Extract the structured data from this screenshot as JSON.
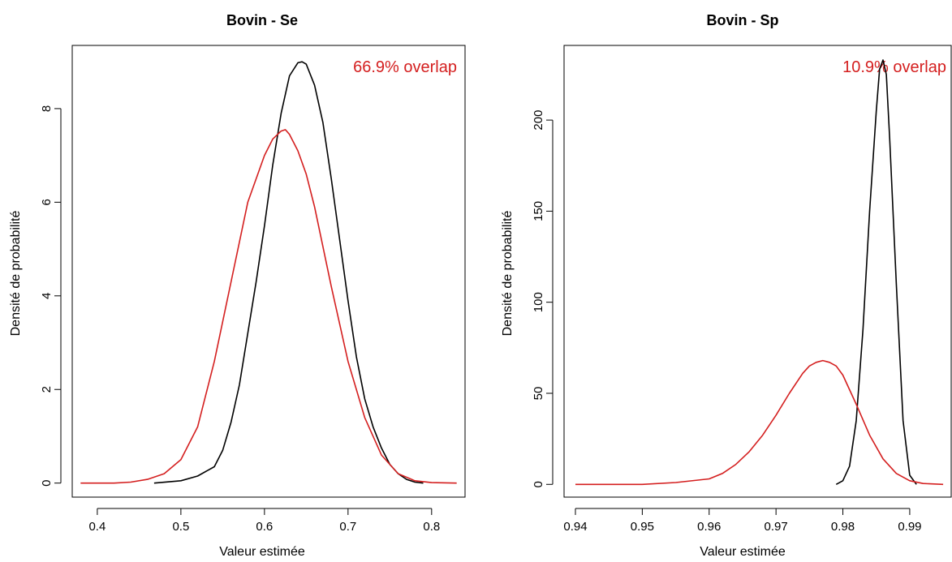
{
  "colors": {
    "series_a": "#000000",
    "series_b": "#d41f1f"
  },
  "chart_data": [
    {
      "type": "line",
      "title": "Bovin - Se",
      "xlabel": "Valeur estimée",
      "ylabel": "Densité de probabilité",
      "xlim": [
        0.37,
        0.84
      ],
      "ylim": [
        -0.3,
        9.35
      ],
      "xticks": [
        0.4,
        0.5,
        0.6,
        0.7,
        0.8
      ],
      "xtick_labels": [
        "0.4",
        "0.5",
        "0.6",
        "0.7",
        "0.8"
      ],
      "yticks": [
        0,
        2,
        4,
        6,
        8
      ],
      "ytick_labels": [
        "0",
        "2",
        "4",
        "6",
        "8"
      ],
      "annotation": "66.9% overlap",
      "grid": false,
      "series": [
        {
          "color": "#000000",
          "x": [
            0.468,
            0.5,
            0.52,
            0.54,
            0.55,
            0.56,
            0.57,
            0.58,
            0.59,
            0.6,
            0.61,
            0.62,
            0.63,
            0.64,
            0.645,
            0.65,
            0.66,
            0.67,
            0.68,
            0.69,
            0.7,
            0.71,
            0.72,
            0.73,
            0.74,
            0.75,
            0.76,
            0.77,
            0.78,
            0.79
          ],
          "y": [
            0,
            0.05,
            0.15,
            0.35,
            0.7,
            1.3,
            2.1,
            3.2,
            4.3,
            5.5,
            6.8,
            7.9,
            8.7,
            8.98,
            9.0,
            8.95,
            8.5,
            7.7,
            6.5,
            5.2,
            3.9,
            2.7,
            1.8,
            1.2,
            0.75,
            0.4,
            0.2,
            0.08,
            0.02,
            0
          ]
        },
        {
          "color": "#d41f1f",
          "x": [
            0.38,
            0.42,
            0.44,
            0.46,
            0.48,
            0.5,
            0.52,
            0.54,
            0.56,
            0.58,
            0.6,
            0.61,
            0.62,
            0.625,
            0.63,
            0.64,
            0.65,
            0.66,
            0.68,
            0.7,
            0.72,
            0.74,
            0.76,
            0.78,
            0.8,
            0.83
          ],
          "y": [
            0,
            0,
            0.02,
            0.08,
            0.2,
            0.5,
            1.2,
            2.6,
            4.3,
            6.0,
            7.0,
            7.35,
            7.52,
            7.55,
            7.45,
            7.1,
            6.6,
            5.9,
            4.2,
            2.6,
            1.4,
            0.6,
            0.2,
            0.05,
            0.01,
            0
          ]
        }
      ]
    },
    {
      "type": "line",
      "title": "Bovin - Sp",
      "xlabel": "Valeur estimée",
      "ylabel": "Densité de probabilité",
      "xlim": [
        0.9383,
        0.9962
      ],
      "ylim": [
        -7,
        241
      ],
      "xticks": [
        0.94,
        0.95,
        0.96,
        0.97,
        0.98,
        0.99
      ],
      "xtick_labels": [
        "0.94",
        "0.95",
        "0.96",
        "0.97",
        "0.98",
        "0.99"
      ],
      "yticks": [
        0,
        50,
        100,
        150,
        200
      ],
      "ytick_labels": [
        "0",
        "50",
        "100",
        "150",
        "200"
      ],
      "annotation": "10.9% overlap",
      "grid": false,
      "series": [
        {
          "color": "#000000",
          "x": [
            0.979,
            0.98,
            0.981,
            0.982,
            0.983,
            0.984,
            0.985,
            0.9855,
            0.986,
            0.9865,
            0.987,
            0.988,
            0.989,
            0.99,
            0.991
          ],
          "y": [
            0,
            2,
            10,
            35,
            85,
            150,
            205,
            228,
            233,
            225,
            190,
            110,
            35,
            5,
            0
          ]
        },
        {
          "color": "#d41f1f",
          "x": [
            0.94,
            0.95,
            0.955,
            0.96,
            0.962,
            0.964,
            0.966,
            0.968,
            0.97,
            0.972,
            0.974,
            0.975,
            0.976,
            0.977,
            0.978,
            0.979,
            0.98,
            0.982,
            0.984,
            0.986,
            0.988,
            0.99,
            0.992,
            0.995
          ],
          "y": [
            0,
            0,
            1,
            3,
            6,
            11,
            18,
            27,
            38,
            50,
            61,
            65,
            67,
            68,
            67,
            65,
            60,
            44,
            27,
            14,
            6,
            2,
            0.5,
            0
          ]
        }
      ]
    }
  ]
}
